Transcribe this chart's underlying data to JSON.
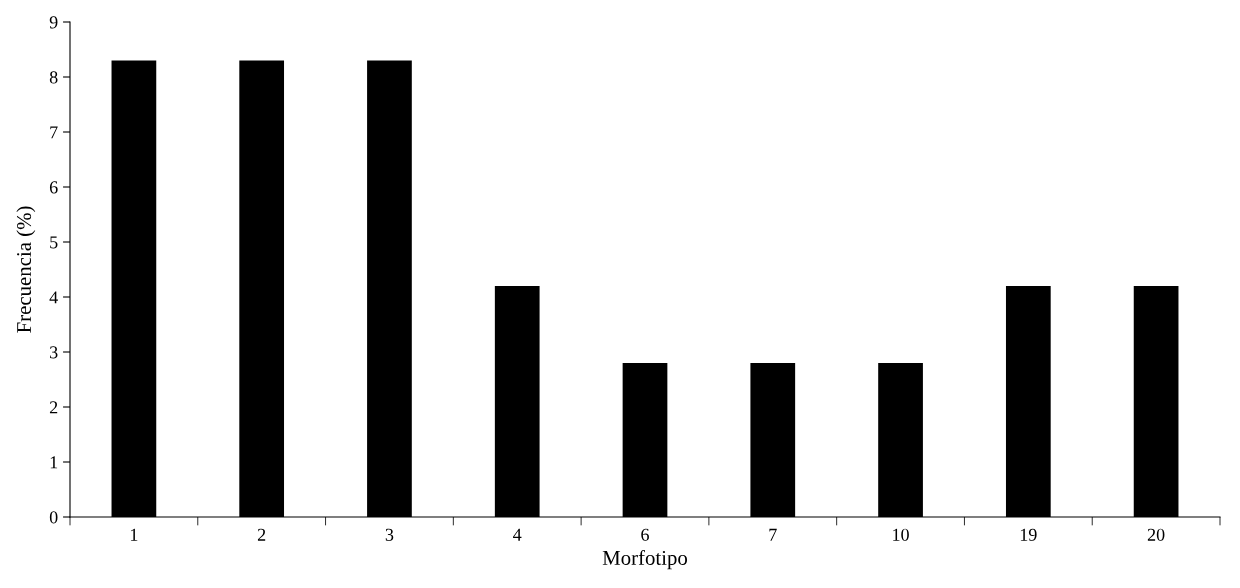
{
  "chart_data": {
    "type": "bar",
    "xlabel": "Morfotipo",
    "ylabel": "Frecuencia (%)",
    "categories": [
      "1",
      "2",
      "3",
      "4",
      "6",
      "7",
      "10",
      "19",
      "20"
    ],
    "values": [
      8.3,
      8.3,
      8.3,
      4.2,
      2.8,
      2.8,
      2.8,
      4.2,
      4.2
    ],
    "color": "#000000",
    "ylim": [
      0,
      9
    ],
    "yticks": [
      0,
      1,
      2,
      3,
      4,
      5,
      6,
      7,
      8,
      9
    ],
    "grid": false,
    "legend": false
  }
}
